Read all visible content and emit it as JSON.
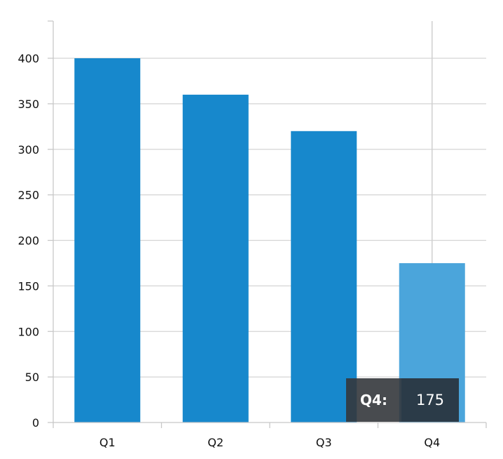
{
  "chart_data": {
    "type": "bar",
    "categories": [
      "Q1",
      "Q2",
      "Q3",
      "Q4"
    ],
    "values": [
      400,
      360,
      320,
      175
    ],
    "title": "",
    "xlabel": "",
    "ylabel": "",
    "ylim": [
      0,
      400
    ],
    "yticks": [
      0,
      50,
      100,
      150,
      200,
      250,
      300,
      350,
      400
    ],
    "grid": true,
    "bar_color": "#1788CC",
    "highlight_color": "#4BA5DB",
    "highlighted_category": "Q4"
  },
  "tooltip": {
    "label": "Q4:",
    "value": "175"
  }
}
